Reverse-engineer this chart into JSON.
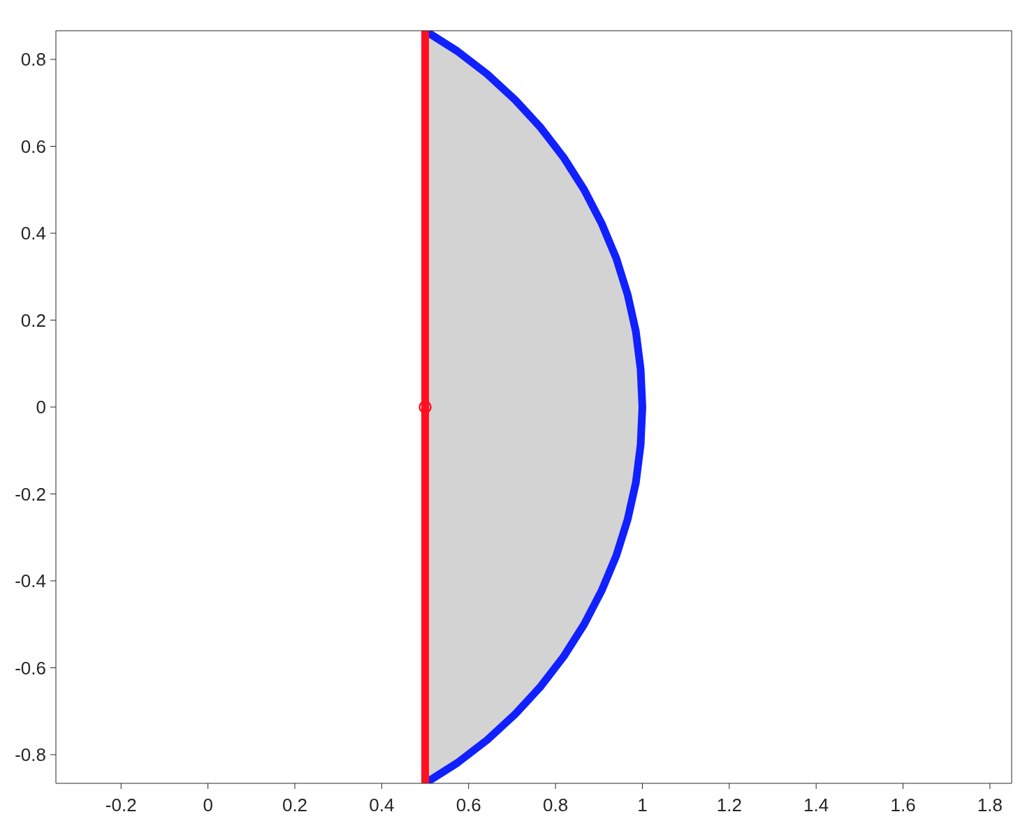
{
  "chart_data": {
    "type": "line",
    "xlim": [
      -0.35,
      1.85
    ],
    "ylim": [
      -0.866,
      0.866
    ],
    "xticks": [
      -0.2,
      0,
      0.2,
      0.4,
      0.6,
      0.8,
      1,
      1.2,
      1.4,
      1.6,
      1.8
    ],
    "yticks": [
      -0.8,
      -0.6,
      -0.4,
      -0.2,
      0,
      0.2,
      0.4,
      0.6,
      0.8
    ],
    "grid": false,
    "legend": false,
    "line_style": "solid",
    "series": [
      {
        "type": "area",
        "color": "#d3d3d3",
        "x": [
          0.5,
          0.55,
          0.6,
          0.65,
          0.7,
          0.75,
          0.8,
          0.85,
          0.9,
          0.95,
          0.97,
          0.99,
          0.995,
          1
        ],
        "values": [
          0.866,
          0.835,
          0.8,
          0.76,
          0.714,
          0.661,
          0.6,
          0.527,
          0.436,
          0.312,
          0.243,
          0.141,
          0.1,
          0
        ]
      },
      {
        "type": "area",
        "color": "#d3d3d3",
        "x": [
          0.5,
          0.55,
          0.6,
          0.65,
          0.7,
          0.75,
          0.8,
          0.85,
          0.9,
          0.95,
          0.97,
          0.99,
          0.995,
          1
        ],
        "values": [
          -0.866,
          -0.835,
          -0.8,
          -0.76,
          -0.714,
          -0.661,
          -0.6,
          -0.527,
          -0.436,
          -0.312,
          -0.243,
          -0.141,
          -0.1,
          0
        ]
      },
      {
        "color": "#1020ff",
        "x": [
          0.5,
          0.574,
          0.643,
          0.707,
          0.766,
          0.819,
          0.866,
          0.906,
          0.94,
          0.966,
          0.985,
          0.996,
          1,
          0.996,
          0.985,
          0.966,
          0.94,
          0.906,
          0.866,
          0.819,
          0.766,
          0.707,
          0.643,
          0.574,
          0.5
        ],
        "values": [
          -0.866,
          -0.819,
          -0.766,
          -0.707,
          -0.643,
          -0.574,
          -0.5,
          -0.423,
          -0.342,
          -0.259,
          -0.174,
          -0.087,
          0,
          0.087,
          0.174,
          0.259,
          0.342,
          0.423,
          0.5,
          0.574,
          0.643,
          0.707,
          0.766,
          0.819,
          0.866
        ]
      },
      {
        "color": "#ff1020",
        "x": [
          0.5,
          0.5
        ],
        "values": [
          -0.866,
          0.866
        ]
      },
      {
        "type": "scatter",
        "color": "#ff1020",
        "marker": "circle",
        "x": [
          0.5
        ],
        "values": [
          0
        ]
      }
    ]
  }
}
